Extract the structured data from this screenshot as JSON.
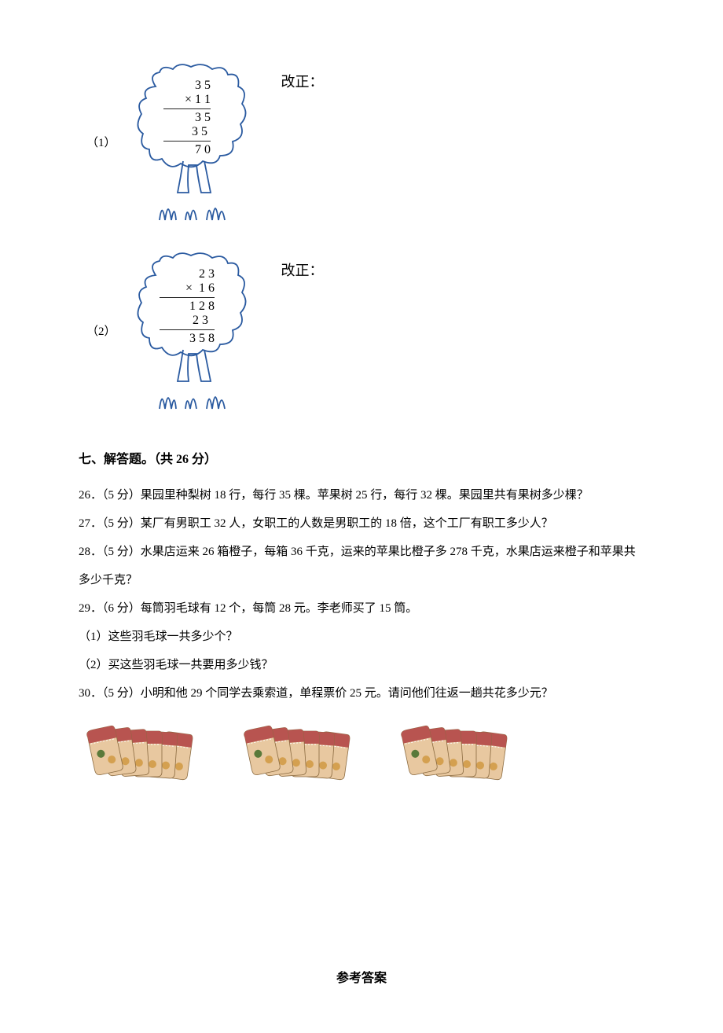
{
  "problem1": {
    "index_label": "（1）",
    "correction_label": "改正：",
    "calc": {
      "line1": "  3 5",
      "line2": "× 1 1",
      "line3": "  3 5",
      "line4": " 3 5 ",
      "line5": "  7 0"
    },
    "tree_fill": "#ffffff",
    "tree_stroke": "#2a5aa0",
    "tree_stroke_width": 1.8
  },
  "problem2": {
    "index_label": "（2）",
    "correction_label": "改正：",
    "calc": {
      "line1": "   2 3",
      "line2": "×  1 6",
      "line3": " 1 2 8",
      "line4": " 2 3  ",
      "line5": " 3 5 8"
    },
    "tree_fill": "#ffffff",
    "tree_stroke": "#2a5aa0",
    "tree_stroke_width": 1.8
  },
  "section7": {
    "heading": "七、解答题。（共 26 分）"
  },
  "q26": {
    "text": "26．（5 分）果园里种梨树 18 行，每行 35 棵。苹果树 25 行，每行 32 棵。果园里共有果树多少棵？"
  },
  "q27": {
    "text": "27．（5 分）某厂有男职工 32 人，女职工的人数是男职工的 18 倍，这个工厂有职工多少人？"
  },
  "q28": {
    "text": "28．（5 分）水果店运来 26 箱橙子，每箱 36 千克，运来的苹果比橙子多 278 千克，水果店运来橙子和苹果共多少千克？"
  },
  "q29": {
    "text": "29．（6 分）每筒羽毛球有 12 个，每筒 28 元。李老师买了 15 筒。",
    "sub1": "（1）这些羽毛球一共多少个？",
    "sub2": "（2）买这些羽毛球一共要用多少钱？"
  },
  "q30": {
    "text": "30．（5 分）小明和他 29 个同学去乘索道，单程票价 25 元。请问他们往返一趟共花多少元？"
  },
  "tickets": {
    "count": 3,
    "stub_color": "#b85450",
    "body_color": "#e8c8a0",
    "detail_color": "#5a7a3a",
    "accent_color": "#d4a050"
  },
  "answer_key": {
    "label": "参考答案"
  }
}
